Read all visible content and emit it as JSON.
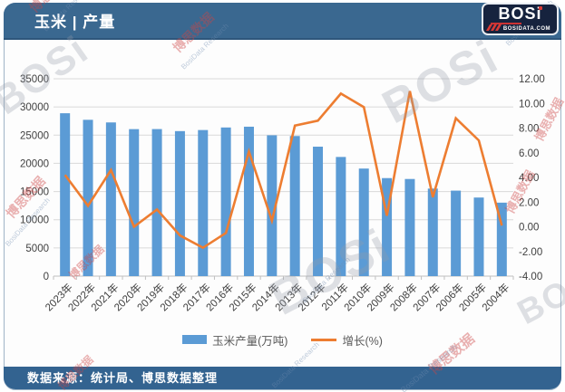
{
  "header": {
    "title": "玉米 | 产量"
  },
  "logo": {
    "name": "BOSi",
    "site": "BOSIDATA.COM"
  },
  "footer": {
    "source": "数据来源：统计局、博思数据整理"
  },
  "watermarks": {
    "cn": "博思数据",
    "en": "BosiData Research",
    "logo": "BOSi"
  },
  "legend": [
    {
      "label": "玉米产量(万吨)",
      "swatch": "bar",
      "color": "#5B9BD5"
    },
    {
      "label": "增长(%)",
      "swatch": "line",
      "color": "#ED7D31"
    }
  ],
  "colors": {
    "bar": "#5B9BD5",
    "line": "#ED7D31",
    "header_bg": "#3A6890",
    "footer_bg": "#336390",
    "grid": "#D9D9D9",
    "axis_line": "#C0C0C0",
    "axis_text": "#3F3F3F"
  },
  "chart_data": {
    "type": "combo_bar_line",
    "title": "玉米 | 产量",
    "categories": [
      "2023年",
      "2022年",
      "2021年",
      "2020年",
      "2019年",
      "2018年",
      "2017年",
      "2016年",
      "2015年",
      "2014年",
      "2013年",
      "2012年",
      "2011年",
      "2010年",
      "2009年",
      "2008年",
      "2007年",
      "2006年",
      "2005年",
      "2004年"
    ],
    "series": [
      {
        "name": "玉米产量(万吨)",
        "type": "bar",
        "axis": "left",
        "color": "#5B9BD5",
        "values": [
          28884,
          27720,
          27255,
          26067,
          26078,
          25717,
          25907,
          26361,
          26499,
          24976,
          24845,
          22956,
          21132,
          19075,
          17382,
          17225,
          15523,
          15160,
          13937,
          13029
        ]
      },
      {
        "name": "增长(%)",
        "type": "line",
        "axis": "right",
        "color": "#ED7D31",
        "values": [
          4.2,
          1.7,
          4.6,
          0.0,
          1.4,
          -0.7,
          -1.7,
          -0.5,
          6.1,
          0.5,
          8.2,
          8.6,
          10.8,
          9.7,
          0.9,
          11.0,
          2.4,
          8.8,
          7.0,
          0.1
        ]
      }
    ],
    "left_axis": {
      "min": 0,
      "max": 35000,
      "tick_values": [
        35000,
        30000,
        25000,
        20000,
        15000,
        10000,
        5000,
        0
      ],
      "tick_labels": [
        "35000",
        "30000",
        "25000",
        "20000",
        "15000",
        "10000",
        "5000",
        "0"
      ]
    },
    "right_axis": {
      "min": -4,
      "max": 12,
      "tick_values": [
        12,
        10,
        8,
        6,
        4,
        2,
        0,
        -2,
        -4
      ],
      "tick_labels": [
        "12.00",
        "10.00",
        "8.00",
        "6.00",
        "4.00",
        "2.00",
        "0.00",
        "-2.00",
        "-4.00"
      ]
    },
    "grid": "horizontal",
    "legend_position": "bottom",
    "x_label_rotation": -45
  }
}
